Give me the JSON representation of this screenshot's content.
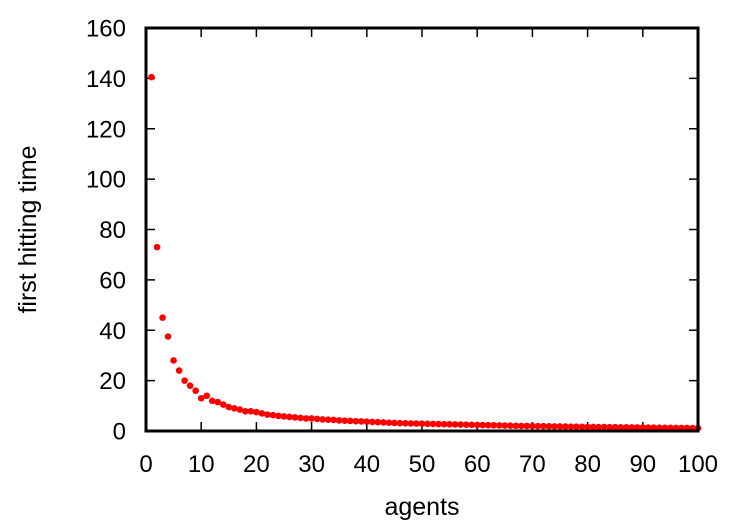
{
  "chart_data": {
    "type": "scatter",
    "title": "",
    "xlabel": "agents",
    "ylabel": "first hitting time",
    "xlim": [
      0,
      100
    ],
    "ylim": [
      0,
      160
    ],
    "xticks": [
      "0",
      "10",
      "20",
      "30",
      "40",
      "50",
      "60",
      "70",
      "80",
      "90",
      "100"
    ],
    "yticks": [
      "0",
      "20",
      "40",
      "60",
      "80",
      "100",
      "120",
      "140",
      "160"
    ],
    "grid": false,
    "legend": "none",
    "marker_color": "#ff0000",
    "series": [
      {
        "x": [
          1,
          2,
          3,
          4,
          5,
          6,
          7,
          8,
          9,
          10,
          11,
          12,
          13,
          14,
          15,
          16,
          17,
          18,
          19,
          20,
          21,
          22,
          23,
          24,
          25,
          26,
          27,
          28,
          29,
          30,
          31,
          32,
          33,
          34,
          35,
          36,
          37,
          38,
          39,
          40,
          41,
          42,
          43,
          44,
          45,
          46,
          47,
          48,
          49,
          50,
          51,
          52,
          53,
          54,
          55,
          56,
          57,
          58,
          59,
          60,
          61,
          62,
          63,
          64,
          65,
          66,
          67,
          68,
          69,
          70,
          71,
          72,
          73,
          74,
          75,
          76,
          77,
          78,
          79,
          80,
          81,
          82,
          83,
          84,
          85,
          86,
          87,
          88,
          89,
          90,
          91,
          92,
          93,
          94,
          95,
          96,
          97,
          98,
          99,
          100
        ],
        "y": [
          140.5,
          73,
          45,
          37.5,
          28,
          24,
          20,
          18,
          16,
          13,
          14,
          12,
          11.5,
          10.5,
          9.5,
          9,
          8.5,
          7.8,
          7.8,
          7.5,
          7,
          6.5,
          6.3,
          6,
          5.8,
          5.6,
          5.4,
          5.2,
          5,
          5,
          4.8,
          4.6,
          4.5,
          4.4,
          4.2,
          4.1,
          4,
          3.9,
          3.8,
          3.7,
          3.6,
          3.5,
          3.4,
          3.3,
          3.2,
          3.1,
          3.05,
          3,
          2.95,
          2.9,
          2.85,
          2.8,
          2.75,
          2.7,
          2.65,
          2.6,
          2.55,
          2.5,
          2.45,
          2.4,
          2.35,
          2.3,
          2.25,
          2.2,
          2.15,
          2.1,
          2.05,
          2,
          2,
          1.95,
          1.9,
          1.9,
          1.85,
          1.8,
          1.8,
          1.75,
          1.7,
          1.7,
          1.65,
          1.6,
          1.6,
          1.55,
          1.55,
          1.5,
          1.5,
          1.45,
          1.45,
          1.4,
          1.4,
          1.35,
          1.35,
          1.3,
          1.3,
          1.25,
          1.25,
          1.2,
          1.2,
          1.2,
          1.15,
          1.15
        ]
      }
    ]
  }
}
